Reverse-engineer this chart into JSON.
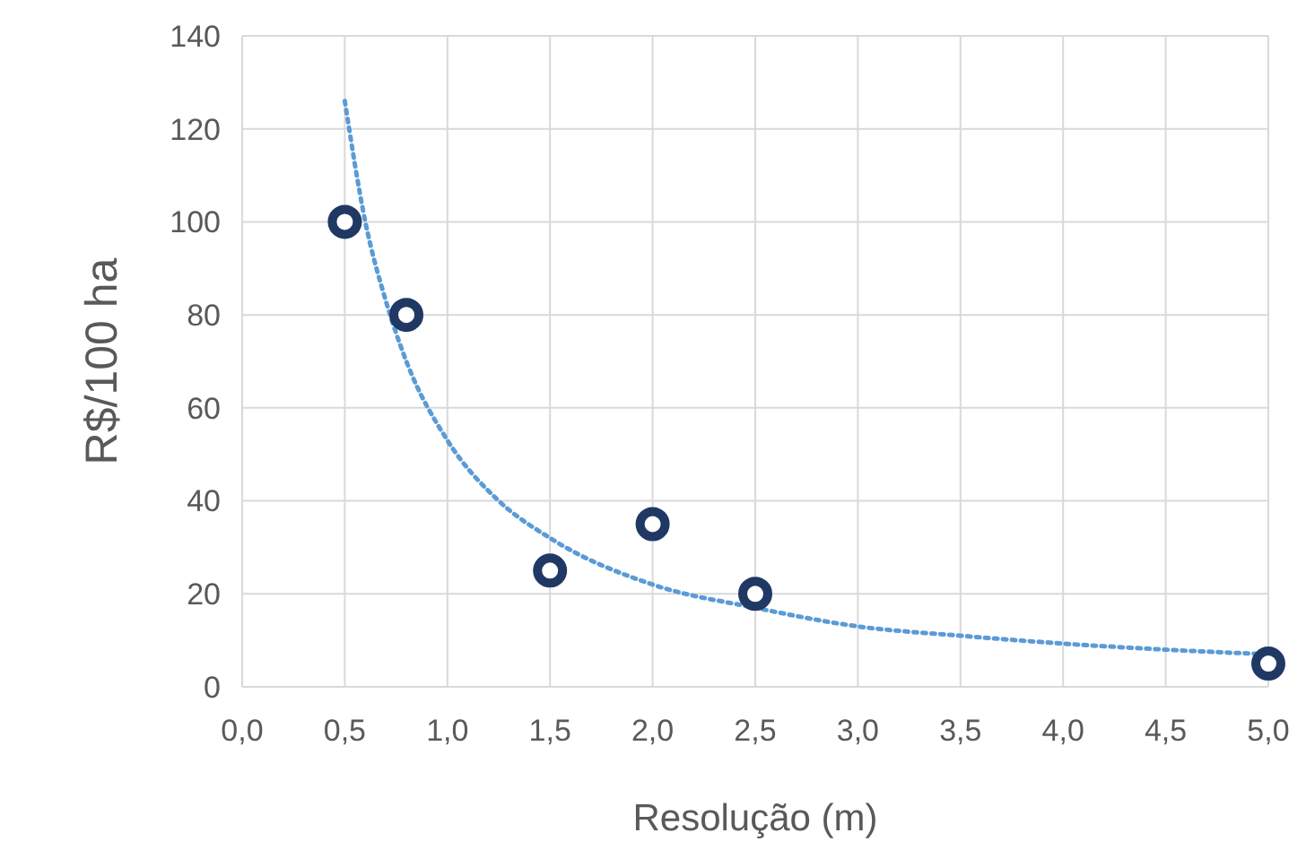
{
  "chart_data": {
    "type": "scatter",
    "xlabel": "Resolução (m)",
    "ylabel": "R$/100 ha",
    "xlim": [
      0,
      5
    ],
    "ylim": [
      0,
      140
    ],
    "xticks": [
      {
        "value": 0,
        "label": "0,0"
      },
      {
        "value": 0.5,
        "label": "0,5"
      },
      {
        "value": 1,
        "label": "1,0"
      },
      {
        "value": 1.5,
        "label": "1,5"
      },
      {
        "value": 2,
        "label": "2,0"
      },
      {
        "value": 2.5,
        "label": "2,5"
      },
      {
        "value": 3,
        "label": "3,0"
      },
      {
        "value": 3.5,
        "label": "3,5"
      },
      {
        "value": 4,
        "label": "4,0"
      },
      {
        "value": 4.5,
        "label": "4,5"
      },
      {
        "value": 5,
        "label": "5,0"
      }
    ],
    "yticks": [
      0,
      20,
      40,
      60,
      80,
      100,
      120,
      140
    ],
    "grid": true,
    "series": [
      {
        "color": "#203864",
        "marker": "circle",
        "x": [
          0.5,
          0.8,
          1.5,
          2,
          2.5,
          5
        ],
        "values": [
          100,
          80,
          25,
          35,
          20,
          5
        ]
      },
      {
        "type": "line",
        "color": "#5b9bd5",
        "line_style": "dotted",
        "x": [
          0.5,
          0.6,
          0.7,
          0.8,
          1,
          1.25,
          1.5,
          2,
          2.5,
          3,
          3.5,
          4,
          4.5,
          5
        ],
        "values": [
          126,
          100,
          83,
          70,
          53,
          40,
          32,
          22,
          17,
          13,
          11,
          9.3,
          8,
          7
        ]
      }
    ]
  }
}
